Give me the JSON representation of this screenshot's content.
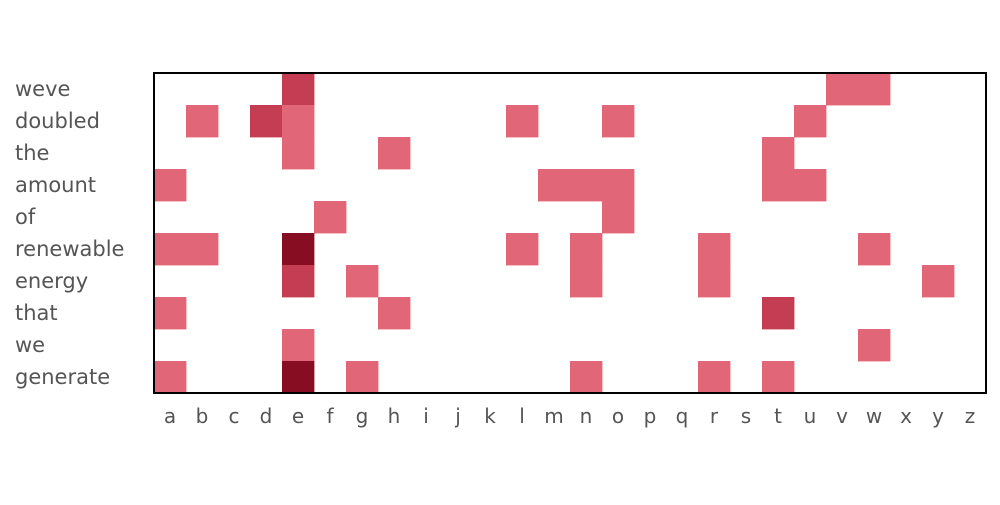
{
  "chart_data": {
    "type": "heatmap",
    "title": "",
    "xlabel": "",
    "ylabel": "",
    "x_categories": [
      "a",
      "b",
      "c",
      "d",
      "e",
      "f",
      "g",
      "h",
      "i",
      "j",
      "k",
      "l",
      "m",
      "n",
      "o",
      "p",
      "q",
      "r",
      "s",
      "t",
      "u",
      "v",
      "w",
      "x",
      "y",
      "z"
    ],
    "y_categories": [
      "weve",
      "doubled",
      "the",
      "amount",
      "of",
      "renewable",
      "energy",
      "that",
      "we",
      "generate"
    ],
    "value_range": [
      0,
      3
    ],
    "colors": {
      "empty": "#ffffff",
      "level1": "#e06678",
      "level2": "#c43d52",
      "level3": "#870e22",
      "border": "#000000"
    },
    "grid": false,
    "legend": "none",
    "rows": [
      {
        "label": "weve",
        "values": [
          0,
          0,
          0,
          0,
          2,
          0,
          0,
          0,
          0,
          0,
          0,
          0,
          0,
          0,
          0,
          0,
          0,
          0,
          0,
          0,
          0,
          1,
          1,
          0,
          0,
          0
        ]
      },
      {
        "label": "doubled",
        "values": [
          0,
          1,
          0,
          2,
          1,
          0,
          0,
          0,
          0,
          0,
          0,
          1,
          0,
          0,
          1,
          0,
          0,
          0,
          0,
          0,
          1,
          0,
          0,
          0,
          0,
          0
        ]
      },
      {
        "label": "the",
        "values": [
          0,
          0,
          0,
          0,
          1,
          0,
          0,
          1,
          0,
          0,
          0,
          0,
          0,
          0,
          0,
          0,
          0,
          0,
          0,
          1,
          0,
          0,
          0,
          0,
          0,
          0
        ]
      },
      {
        "label": "amount",
        "values": [
          1,
          0,
          0,
          0,
          0,
          0,
          0,
          0,
          0,
          0,
          0,
          0,
          1,
          1,
          1,
          0,
          0,
          0,
          0,
          1,
          1,
          0,
          0,
          0,
          0,
          0
        ]
      },
      {
        "label": "of",
        "values": [
          0,
          0,
          0,
          0,
          0,
          1,
          0,
          0,
          0,
          0,
          0,
          0,
          0,
          0,
          1,
          0,
          0,
          0,
          0,
          0,
          0,
          0,
          0,
          0,
          0,
          0
        ]
      },
      {
        "label": "renewable",
        "values": [
          1,
          1,
          0,
          0,
          3,
          0,
          0,
          0,
          0,
          0,
          0,
          1,
          0,
          1,
          0,
          0,
          0,
          1,
          0,
          0,
          0,
          0,
          1,
          0,
          0,
          0
        ]
      },
      {
        "label": "energy",
        "values": [
          0,
          0,
          0,
          0,
          2,
          0,
          1,
          0,
          0,
          0,
          0,
          0,
          0,
          1,
          0,
          0,
          0,
          1,
          0,
          0,
          0,
          0,
          0,
          0,
          1,
          0
        ]
      },
      {
        "label": "that",
        "values": [
          1,
          0,
          0,
          0,
          0,
          0,
          0,
          1,
          0,
          0,
          0,
          0,
          0,
          0,
          0,
          0,
          0,
          0,
          0,
          2,
          0,
          0,
          0,
          0,
          0,
          0
        ]
      },
      {
        "label": "we",
        "values": [
          0,
          0,
          0,
          0,
          1,
          0,
          0,
          0,
          0,
          0,
          0,
          0,
          0,
          0,
          0,
          0,
          0,
          0,
          0,
          0,
          0,
          0,
          1,
          0,
          0,
          0
        ]
      },
      {
        "label": "generate",
        "values": [
          1,
          0,
          0,
          0,
          3,
          0,
          1,
          0,
          0,
          0,
          0,
          0,
          0,
          1,
          0,
          0,
          0,
          1,
          0,
          1,
          0,
          0,
          0,
          0,
          0,
          0
        ]
      }
    ]
  }
}
